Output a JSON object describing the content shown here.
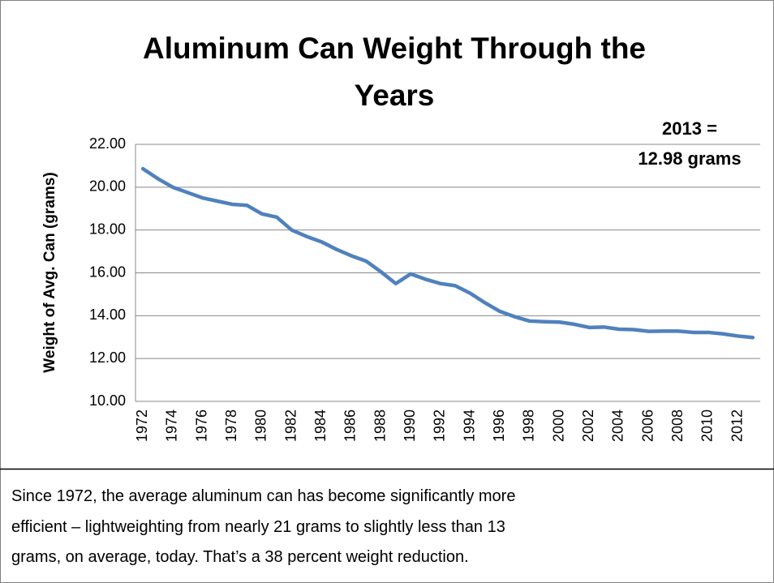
{
  "chart_data": {
    "type": "line",
    "title": [
      "Aluminum Can Weight Through the",
      "Years"
    ],
    "y_label": "Weight of Avg. Can (grams)",
    "annotation": [
      "2013 =",
      "12.98 grams"
    ],
    "categories": [
      "1972",
      null,
      "1974",
      null,
      "1976",
      null,
      "1978",
      null,
      "1980",
      null,
      "1982",
      null,
      "1984",
      null,
      "1986",
      null,
      "1988",
      null,
      "1990",
      null,
      "1992",
      null,
      "1994",
      null,
      "1996",
      null,
      "1998",
      null,
      "2000",
      null,
      "2002",
      null,
      "2004",
      null,
      "2006",
      null,
      "2008",
      null,
      "2010",
      null,
      "2012",
      null
    ],
    "series": [
      {
        "color": "#4f81bd",
        "values": [
          20.86,
          20.4,
          20.0,
          19.75,
          19.5,
          19.35,
          19.2,
          19.15,
          18.75,
          18.6,
          18.0,
          17.7,
          17.45,
          17.1,
          16.8,
          16.55,
          16.05,
          15.5,
          15.95,
          15.7,
          15.5,
          15.4,
          15.05,
          14.6,
          14.2,
          13.95,
          13.75,
          13.72,
          13.7,
          13.6,
          13.45,
          13.47,
          13.37,
          13.35,
          13.27,
          13.28,
          13.28,
          13.22,
          13.22,
          13.15,
          13.05,
          12.98
        ]
      }
    ],
    "ylim": [
      10,
      22
    ],
    "yticks": [
      {
        "value": 10,
        "label": "10.00"
      },
      {
        "value": 12,
        "label": "12.00"
      },
      {
        "value": 14,
        "label": "14.00"
      },
      {
        "value": 16,
        "label": "16.00"
      },
      {
        "value": 18,
        "label": "18.00"
      },
      {
        "value": 20,
        "label": "20.00"
      },
      {
        "value": 22,
        "label": "22.00"
      }
    ],
    "grid": true
  },
  "caption": [
    "Since 1972, the average aluminum can has become significantly more",
    "efficient  – lightweighting from nearly 21 grams to slightly less than 13",
    "grams, on average, today. That’s a 38 percent weight reduction."
  ]
}
